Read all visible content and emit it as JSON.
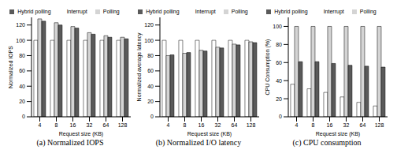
{
  "chart_data": [
    {
      "type": "bar",
      "title": "(a) Normalized IOPS",
      "x_label": "Request size (KB)",
      "y_label": "Normalized IOPS",
      "categories": [
        "4",
        "8",
        "16",
        "32",
        "64",
        "128"
      ],
      "series": [
        {
          "name": "Interrupt",
          "color": "#ffffff",
          "values": [
            100,
            100,
            100,
            100,
            100,
            100
          ]
        },
        {
          "name": "Polling",
          "color": "#d4d4d4",
          "values": [
            128,
            123,
            118,
            110,
            106,
            104
          ]
        },
        {
          "name": "Hybrid polling",
          "color": "#5a5a5a",
          "values": [
            125,
            120,
            116,
            108,
            104,
            102
          ]
        }
      ],
      "ylim": [
        0,
        130
      ],
      "yticks": [
        0,
        20,
        40,
        60,
        80,
        100,
        120
      ],
      "grid": false,
      "legend": "top"
    },
    {
      "type": "bar",
      "title": "(b) Normalized I/O latency",
      "x_label": "Request size (KB)",
      "y_label": "Normalized average latency",
      "categories": [
        "4",
        "8",
        "16",
        "32",
        "64",
        "128"
      ],
      "series": [
        {
          "name": "Interrupt",
          "color": "#ffffff",
          "values": [
            100,
            100,
            100,
            100,
            100,
            100
          ]
        },
        {
          "name": "Polling",
          "color": "#d4d4d4",
          "values": [
            80,
            83,
            87,
            91,
            95,
            98
          ]
        },
        {
          "name": "Hybrid polling",
          "color": "#5a5a5a",
          "values": [
            81,
            84,
            86,
            90,
            94,
            97
          ]
        }
      ],
      "ylim": [
        0,
        130
      ],
      "yticks": [
        0,
        20,
        40,
        60,
        80,
        100,
        120
      ],
      "grid": false,
      "legend": "top"
    },
    {
      "type": "bar",
      "title": "(c) CPU consumption",
      "x_label": "Request size (KB)",
      "y_label": "CPU Consumption (%)",
      "categories": [
        "4",
        "8",
        "16",
        "32",
        "64",
        "128"
      ],
      "series": [
        {
          "name": "Interrupt",
          "color": "#ffffff",
          "values": [
            36,
            31,
            27,
            22,
            16,
            12
          ]
        },
        {
          "name": "Polling",
          "color": "#d4d4d4",
          "values": [
            100,
            100,
            100,
            100,
            100,
            100
          ]
        },
        {
          "name": "Hybrid polling",
          "color": "#5a5a5a",
          "values": [
            61,
            61,
            59,
            57,
            56,
            55
          ]
        }
      ],
      "ylim": [
        0,
        110
      ],
      "yticks": [
        0,
        20,
        40,
        60,
        80,
        100
      ],
      "grid": false,
      "legend": "top"
    }
  ]
}
